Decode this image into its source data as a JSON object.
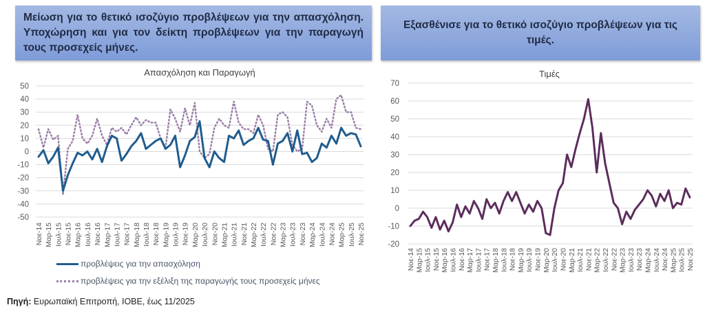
{
  "headers": {
    "left": "Μείωση για το θετικό ισοζύγιο προβλέψεων για την απασχόληση. Υποχώρηση και για τον δείκτη προβλέψεων για την παραγωγή τους προσεχείς μήνες.",
    "right": "Εξασθένισε για το θετικό ισοζύγιο προβλέψεων για τις τιμές."
  },
  "source": {
    "label": "Πηγή:",
    "text": " Ευρωπαϊκή Επιτροπή, ΙΟΒΕ, έως 11/2025"
  },
  "colors": {
    "employment": "#1f5c8f",
    "production": "#9b7fa6",
    "prices": "#5b2d5c",
    "grid": "#d9d9d9",
    "header": "#8eaadb"
  },
  "chart_data": [
    {
      "type": "line",
      "title": "Απασχόληση και Παραγωγή",
      "xlabel": "",
      "ylabel": "",
      "ylim": [
        -50,
        50
      ],
      "yticks": [
        50,
        40,
        30,
        20,
        10,
        0,
        -10,
        -20,
        -30,
        -40,
        -50
      ],
      "x_step": "2 months, Nov-14 to Nov-25",
      "tick_labels": [
        "Νοε-14",
        "Μαρ-15",
        "Ιουλ-15",
        "Νοε-15",
        "Μαρ-16",
        "Ιουλ-16",
        "Νοε-16",
        "Μαρ-17",
        "Ιουλ-17",
        "Νοε-17",
        "Μαρ-18",
        "Ιουλ-18",
        "Νοε-18",
        "Μαρ-19",
        "Ιουλ-19",
        "Νοε-19",
        "Μαρ-20",
        "Ιουλ-20",
        "Νοε-20",
        "Μαρ-21",
        "Ιουλ-21",
        "Νοε-21",
        "Μαρ-22",
        "Ιουλ-22",
        "Νοε-22",
        "Μαρ-23",
        "Ιουλ-23",
        "Νοε-23",
        "Μαρ-24",
        "Ιουλ-24",
        "Νοε-24",
        "Μαρ-25",
        "Ιουλ-25",
        "Νοε-25"
      ],
      "grid": true,
      "legend_position": "bottom",
      "series": [
        {
          "name": "προβλέψεις για την απασχόληση",
          "style": "solid",
          "values": [
            -4,
            1,
            -9,
            -4,
            3,
            -30,
            -18,
            -9,
            -1,
            -3,
            0,
            -6,
            2,
            -8,
            4,
            12,
            10,
            -7,
            -2,
            4,
            8,
            14,
            2,
            5,
            8,
            10,
            2,
            5,
            12,
            -12,
            -3,
            8,
            11,
            23,
            -5,
            -12,
            0,
            -5,
            -8,
            12,
            10,
            16,
            5,
            8,
            10,
            18,
            9,
            8,
            -10,
            6,
            8,
            14,
            0,
            16,
            -2,
            -1,
            -8,
            -5,
            6,
            3,
            12,
            6,
            18,
            12,
            14,
            13,
            4
          ]
        },
        {
          "name": "προβλέψεις για την εξέλιξη της παραγωγής τους προσεχείς μήνες",
          "style": "dotted",
          "values": [
            17,
            3,
            17,
            9,
            12,
            -33,
            2,
            8,
            28,
            10,
            6,
            12,
            25,
            12,
            5,
            18,
            15,
            18,
            13,
            20,
            26,
            20,
            24,
            22,
            22,
            10,
            3,
            32,
            25,
            15,
            33,
            20,
            37,
            0,
            -5,
            -2,
            18,
            25,
            20,
            18,
            38,
            22,
            17,
            17,
            14,
            28,
            20,
            2,
            0,
            28,
            30,
            26,
            5,
            0,
            2,
            38,
            35,
            20,
            15,
            25,
            18,
            40,
            43,
            30,
            30,
            18,
            17
          ]
        }
      ]
    },
    {
      "type": "line",
      "title": "Τιμές",
      "xlabel": "",
      "ylabel": "",
      "ylim": [
        -20,
        70
      ],
      "yticks": [
        70,
        60,
        50,
        40,
        30,
        20,
        10,
        0,
        -10,
        -20
      ],
      "x_step": "2 months, Nov-14 to Nov-25",
      "tick_labels": [
        "Νοε-14",
        "Μαρ-15",
        "Ιουλ-15",
        "Νοε-15",
        "Μαρ-16",
        "Ιουλ-16",
        "Νοε-16",
        "Μαρ-17",
        "Ιουλ-17",
        "Νοε-17",
        "Μαρ-18",
        "Ιουλ-18",
        "Νοε-18",
        "Μαρ-19",
        "Ιουλ-19",
        "Νοε-19",
        "Μαρ-20",
        "Ιουλ-20",
        "Νοε-20",
        "Μαρ-21",
        "Ιουλ-21",
        "Νοε-21",
        "Μαρ-22",
        "Ιουλ-22",
        "Νοε-22",
        "Μαρ-23",
        "Ιουλ-23",
        "Νοε-23",
        "Μαρ-24",
        "Ιουλ-24",
        "Νοε-24",
        "Μαρ-25",
        "Ιουλ-25",
        "Νοε-25"
      ],
      "grid": true,
      "series": [
        {
          "name": "Τιμές",
          "style": "solid",
          "values": [
            -10,
            -7,
            -6,
            -2,
            -5,
            -11,
            -5,
            -12,
            -7,
            -13,
            -8,
            2,
            -5,
            1,
            -3,
            4,
            0,
            -6,
            5,
            0,
            3,
            -3,
            4,
            9,
            4,
            9,
            3,
            -3,
            2,
            -2,
            4,
            0,
            -14,
            -15,
            0,
            10,
            14,
            30,
            23,
            33,
            42,
            50,
            61,
            45,
            20,
            42,
            25,
            14,
            3,
            0,
            -9,
            -2,
            -6,
            -1,
            2,
            5,
            10,
            7,
            1,
            8,
            4,
            10,
            0,
            3,
            2,
            11,
            6
          ]
        }
      ]
    }
  ]
}
